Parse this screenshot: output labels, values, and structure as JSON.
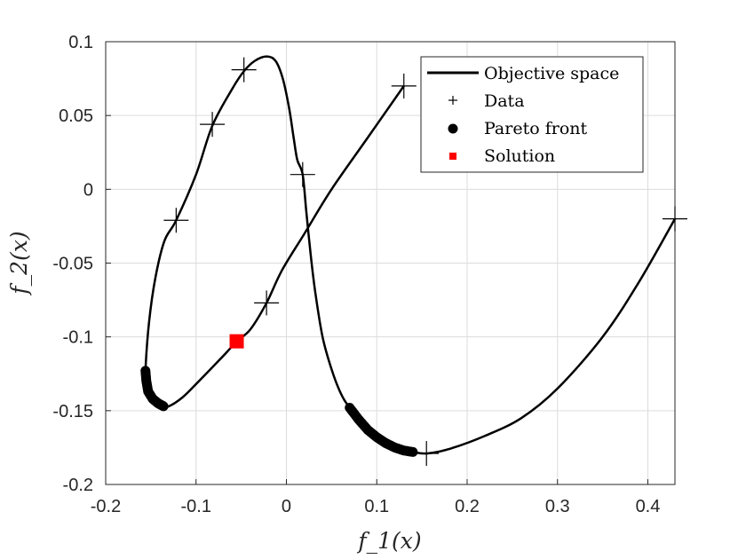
{
  "chart_data": {
    "type": "line",
    "xlabel": "f_1(x)",
    "ylabel": "f_2(x)",
    "xlim": [
      -0.2,
      0.43
    ],
    "ylim": [
      -0.2,
      0.1
    ],
    "xticks": [
      -0.2,
      -0.1,
      0,
      0.1,
      0.2,
      0.3,
      0.4
    ],
    "xtick_labels": [
      "-0.2",
      "-0.1",
      "0",
      "0.1",
      "0.2",
      "0.3",
      "0.4"
    ],
    "yticks": [
      -0.2,
      -0.15,
      -0.1,
      -0.05,
      0,
      0.05,
      0.1
    ],
    "ytick_labels": [
      "-0.2",
      "-0.15",
      "-0.1",
      "-0.05",
      "0",
      "0.05",
      "0.1"
    ],
    "grid": true,
    "legend_position": "top-right",
    "series": [
      {
        "name": "Objective space",
        "kind": "line",
        "color": "#000000",
        "points": [
          [
            0.13,
            0.07
          ],
          [
            0.09,
            0.035
          ],
          [
            0.05,
            0.0
          ],
          [
            0.02,
            -0.03
          ],
          [
            -0.005,
            -0.055
          ],
          [
            -0.022,
            -0.077
          ],
          [
            -0.04,
            -0.095
          ],
          [
            -0.055,
            -0.103
          ],
          [
            -0.07,
            -0.113
          ],
          [
            -0.1,
            -0.132
          ],
          [
            -0.115,
            -0.141
          ],
          [
            -0.13,
            -0.147
          ],
          [
            -0.137,
            -0.147
          ],
          [
            -0.148,
            -0.142
          ],
          [
            -0.153,
            -0.137
          ],
          [
            -0.155,
            -0.13
          ],
          [
            -0.156,
            -0.123
          ],
          [
            -0.152,
            -0.09
          ],
          [
            -0.145,
            -0.06
          ],
          [
            -0.135,
            -0.035
          ],
          [
            -0.122,
            -0.021
          ],
          [
            -0.1,
            0.01
          ],
          [
            -0.082,
            0.043
          ],
          [
            -0.06,
            0.068
          ],
          [
            -0.047,
            0.08
          ],
          [
            -0.035,
            0.087
          ],
          [
            -0.022,
            0.09
          ],
          [
            -0.012,
            0.087
          ],
          [
            -0.004,
            0.075
          ],
          [
            0.003,
            0.055
          ],
          [
            0.008,
            0.035
          ],
          [
            0.012,
            0.02
          ],
          [
            0.018,
            0.01
          ],
          [
            0.022,
            -0.015
          ],
          [
            0.027,
            -0.045
          ],
          [
            0.032,
            -0.07
          ],
          [
            0.04,
            -0.1
          ],
          [
            0.05,
            -0.122
          ],
          [
            0.06,
            -0.138
          ],
          [
            0.07,
            -0.148
          ],
          [
            0.09,
            -0.163
          ],
          [
            0.11,
            -0.172
          ],
          [
            0.13,
            -0.177
          ],
          [
            0.14,
            -0.178
          ],
          [
            0.155,
            -0.179
          ],
          [
            0.18,
            -0.176
          ],
          [
            0.22,
            -0.167
          ],
          [
            0.26,
            -0.155
          ],
          [
            0.3,
            -0.135
          ],
          [
            0.35,
            -0.1
          ],
          [
            0.39,
            -0.063
          ],
          [
            0.43,
            -0.02
          ]
        ]
      },
      {
        "name": "Data",
        "kind": "scatter",
        "marker": "plus",
        "color": "#000000",
        "points": [
          [
            0.13,
            0.07
          ],
          [
            -0.047,
            0.081
          ],
          [
            -0.082,
            0.044
          ],
          [
            0.018,
            0.01
          ],
          [
            -0.122,
            -0.021
          ],
          [
            0.43,
            -0.02
          ],
          [
            -0.022,
            -0.077
          ],
          [
            0.155,
            -0.179
          ]
        ]
      },
      {
        "name": "Pareto front",
        "kind": "scatter",
        "marker": "dot",
        "color": "#000000",
        "points": [
          [
            -0.156,
            -0.123
          ],
          [
            -0.155,
            -0.13
          ],
          [
            -0.153,
            -0.137
          ],
          [
            -0.148,
            -0.142
          ],
          [
            -0.142,
            -0.145
          ],
          [
            -0.136,
            -0.147
          ],
          [
            0.07,
            -0.148
          ],
          [
            0.08,
            -0.156
          ],
          [
            0.09,
            -0.163
          ],
          [
            0.1,
            -0.168
          ],
          [
            0.11,
            -0.172
          ],
          [
            0.12,
            -0.175
          ],
          [
            0.13,
            -0.177
          ],
          [
            0.14,
            -0.178
          ]
        ]
      },
      {
        "name": "Solution",
        "kind": "scatter",
        "marker": "square",
        "color": "#ff0000",
        "points": [
          [
            -0.055,
            -0.103
          ]
        ]
      }
    ]
  }
}
